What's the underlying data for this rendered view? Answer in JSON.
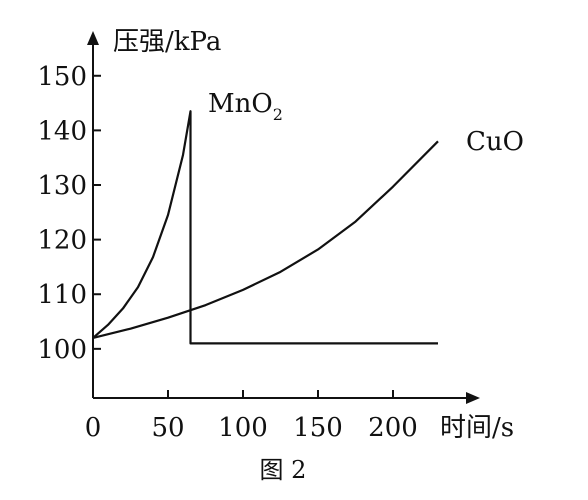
{
  "chart_data": {
    "type": "line",
    "title": "",
    "ylabel": "压强/kPa",
    "xlabel": "时间/s",
    "x_ticks": [
      "0",
      "50",
      "100",
      "150",
      "200"
    ],
    "y_ticks": [
      "100",
      "110",
      "120",
      "130",
      "140",
      "150"
    ],
    "xlim": [
      0,
      250
    ],
    "ylim": [
      91,
      156
    ],
    "series": [
      {
        "name": "MnO2",
        "name_main": "MnO",
        "name_sub": "2",
        "x": [
          0,
          10,
          20,
          30,
          40,
          50,
          60,
          65,
          65,
          230
        ],
        "y": [
          102,
          104.4,
          107.4,
          111.3,
          116.8,
          124.5,
          135.5,
          143.5,
          101,
          101
        ]
      },
      {
        "name": "CuO",
        "x": [
          0,
          25,
          50,
          75,
          100,
          125,
          150,
          175,
          200,
          230
        ],
        "y": [
          102,
          103.7,
          105.7,
          108,
          110.8,
          114.1,
          118.2,
          123.3,
          129.7,
          138
        ]
      }
    ],
    "grid": false,
    "legend": "inline labels"
  },
  "caption": "图 2"
}
